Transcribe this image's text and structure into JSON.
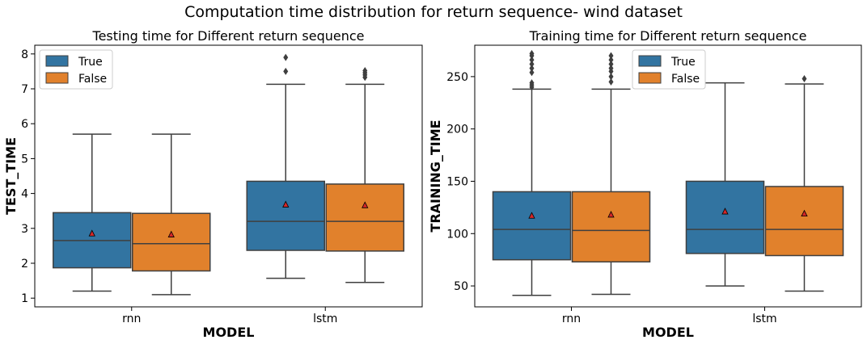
{
  "figure": {
    "title": "Computation time distribution for return sequence- wind dataset"
  },
  "colors": {
    "true": "#3274a1",
    "false": "#e1812c",
    "line": "#3f3f3f",
    "mean_marker": "#d62728"
  },
  "chart_data": [
    {
      "type": "box",
      "title": "Testing time for Different return sequence",
      "xlabel": "MODEL",
      "ylabel": "TEST_TIME",
      "categories": [
        "rnn",
        "lstm"
      ],
      "ylim": [
        0.75,
        8.25
      ],
      "yticks": [
        1,
        2,
        3,
        4,
        5,
        6,
        7,
        8
      ],
      "legend": {
        "position": "top-left",
        "entries": [
          "True",
          "False"
        ]
      },
      "series": [
        {
          "name": "True",
          "boxes": [
            {
              "min": 1.2,
              "q1": 1.87,
              "median": 2.65,
              "q3": 3.45,
              "max": 5.7,
              "mean": 2.85,
              "outliers": []
            },
            {
              "min": 1.57,
              "q1": 2.37,
              "median": 3.2,
              "q3": 4.35,
              "max": 7.13,
              "mean": 3.68,
              "outliers": [
                7.5,
                7.9
              ]
            }
          ]
        },
        {
          "name": "False",
          "boxes": [
            {
              "min": 1.1,
              "q1": 1.78,
              "median": 2.56,
              "q3": 3.43,
              "max": 5.7,
              "mean": 2.82,
              "outliers": []
            },
            {
              "min": 1.45,
              "q1": 2.35,
              "median": 3.2,
              "q3": 4.27,
              "max": 7.13,
              "mean": 3.66,
              "outliers": [
                7.33,
                7.4,
                7.46,
                7.52
              ]
            }
          ]
        }
      ]
    },
    {
      "type": "box",
      "title": "Training time for Different return sequence",
      "xlabel": "MODEL",
      "ylabel": "TRAINING_TIME",
      "categories": [
        "rnn",
        "lstm"
      ],
      "ylim": [
        30,
        280
      ],
      "yticks": [
        50,
        100,
        150,
        200,
        250
      ],
      "legend": {
        "position": "top-center",
        "entries": [
          "True",
          "False"
        ]
      },
      "series": [
        {
          "name": "True",
          "boxes": [
            {
              "min": 41,
              "q1": 75,
              "median": 104,
              "q3": 140,
              "max": 238,
              "mean": 117,
              "outliers": [
                240,
                242,
                244,
                254,
                258,
                262,
                266,
                270,
                272
              ]
            },
            {
              "min": 50,
              "q1": 81,
              "median": 104,
              "q3": 150,
              "max": 244,
              "mean": 121,
              "outliers": []
            }
          ]
        },
        {
          "name": "False",
          "boxes": [
            {
              "min": 42,
              "q1": 73,
              "median": 103,
              "q3": 140,
              "max": 238,
              "mean": 118,
              "outliers": [
                245,
                250,
                255,
                258,
                262,
                266,
                270
              ]
            },
            {
              "min": 45,
              "q1": 79,
              "median": 104,
              "q3": 145,
              "max": 243,
              "mean": 119,
              "outliers": [
                248
              ]
            }
          ]
        }
      ]
    }
  ]
}
